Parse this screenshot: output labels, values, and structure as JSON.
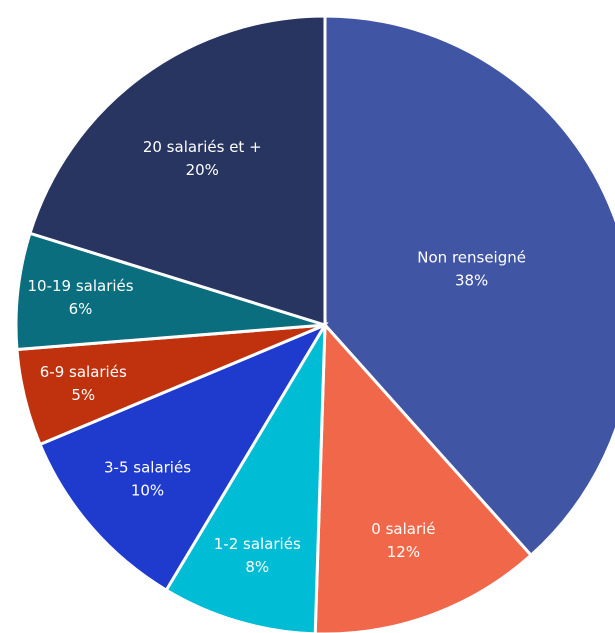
{
  "chart_data": {
    "type": "pie",
    "categories": [
      "Non renseigné",
      "0 salarié",
      "1-2 salariés",
      "3-5 salariés",
      "6-9 salariés",
      "10-19 salariés",
      "20 salariés et +"
    ],
    "values": [
      38,
      12,
      8,
      10,
      5,
      6,
      20
    ],
    "value_labels": [
      "38%",
      "12%",
      "8%",
      "10%",
      "5%",
      "6%",
      "20%"
    ],
    "colors": [
      "#4155a5",
      "#f0674a",
      "#00bcd4",
      "#1f3bce",
      "#c0320e",
      "#0a6e7e",
      "#273560"
    ]
  }
}
